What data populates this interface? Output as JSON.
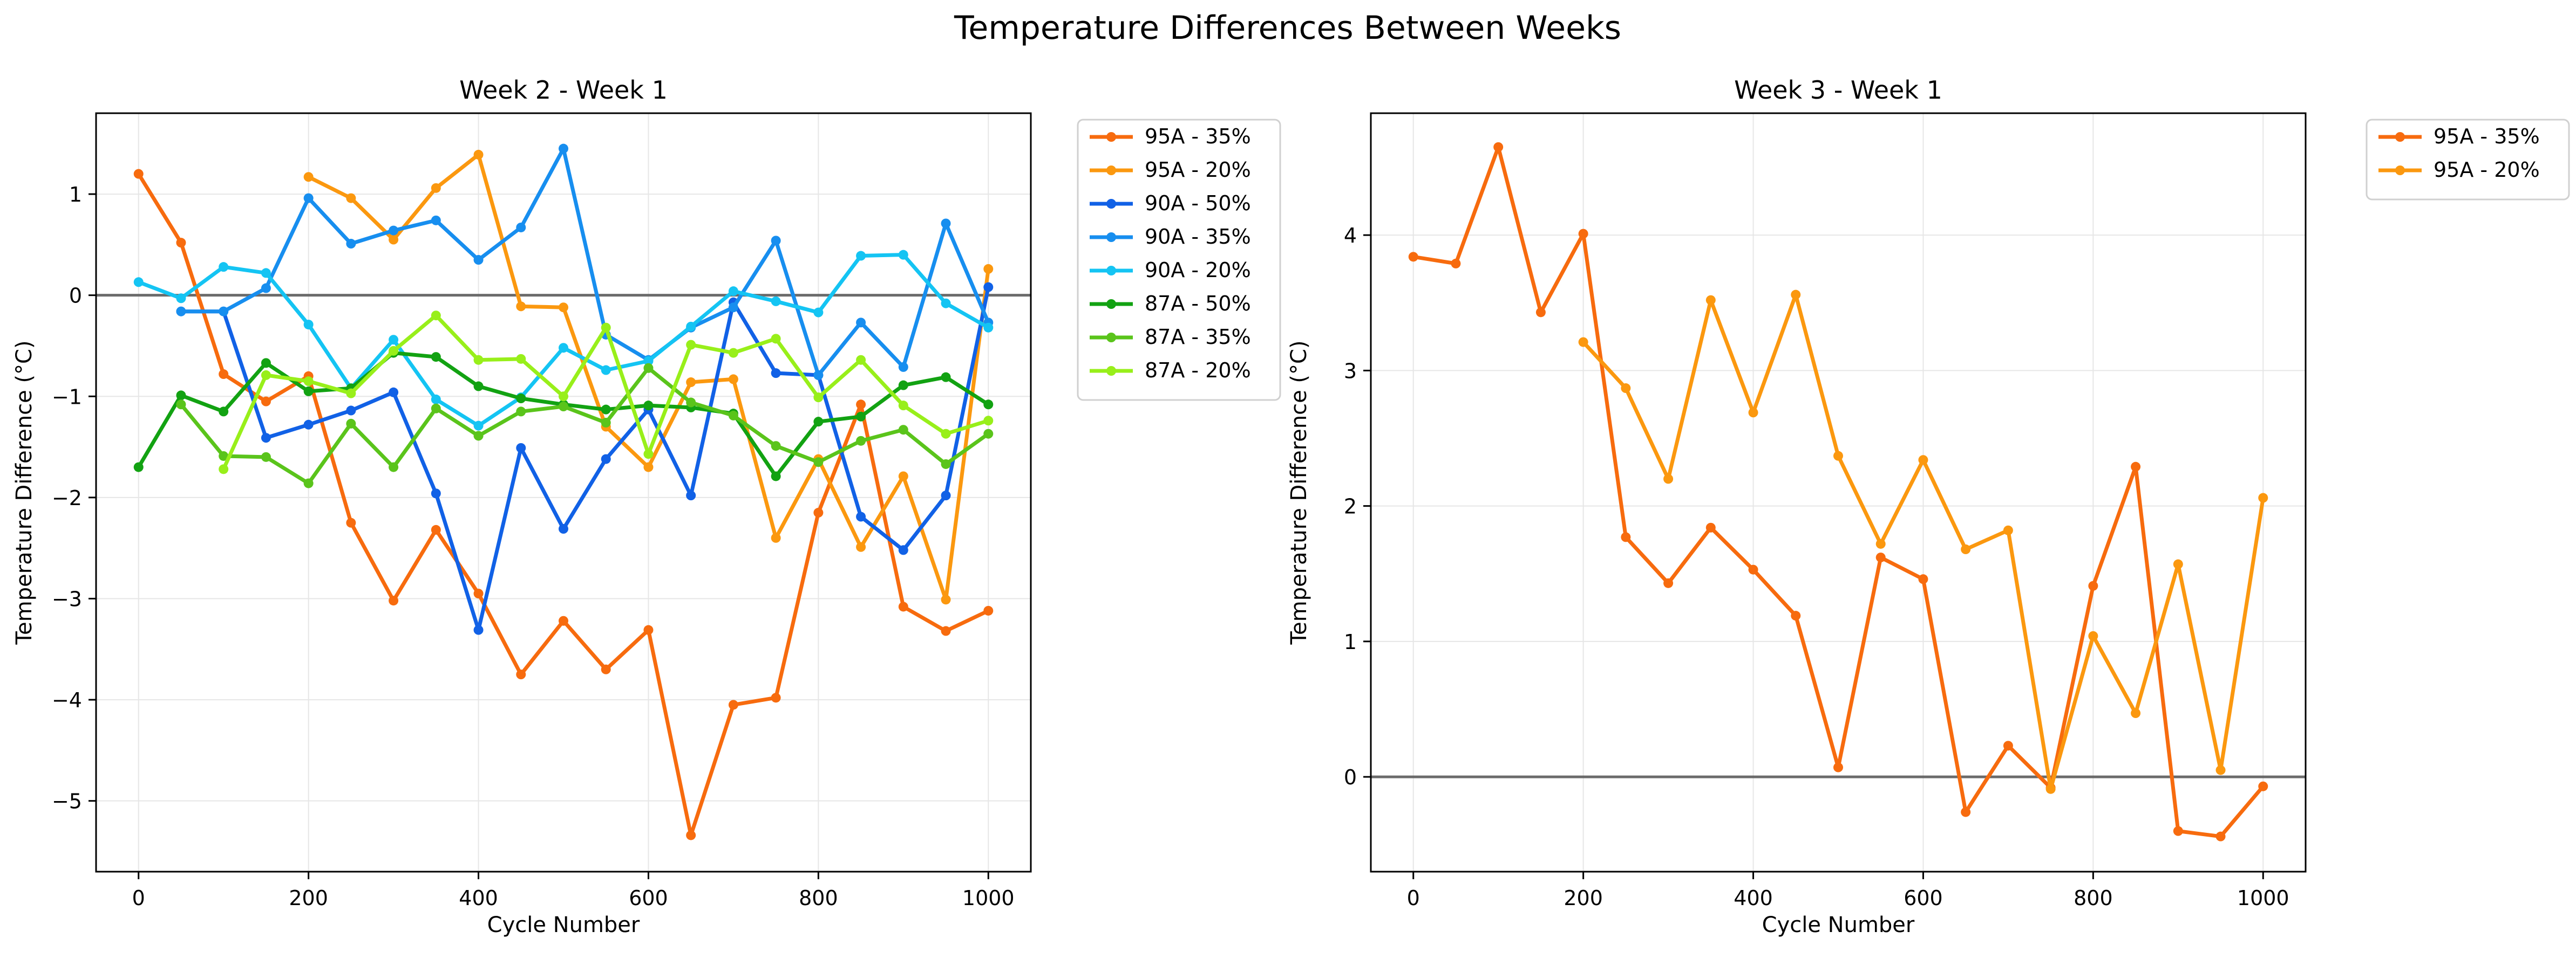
{
  "figure": {
    "suptitle": "Temperature Differences Between Weeks"
  },
  "colors": {
    "95A - 35%": "#f76b0e",
    "95A - 20%": "#fb980f",
    "90A - 50%": "#1161e6",
    "90A - 35%": "#178eef",
    "90A - 20%": "#14c4f3",
    "87A - 50%": "#12a212",
    "87A - 35%": "#5ac41b",
    "87A - 20%": "#98ef1a",
    "zero_line": "#6b6b6b",
    "grid": "#e6e6e6"
  },
  "chart_data": [
    {
      "type": "line",
      "title": "Week 2 - Week 1",
      "xlabel": "Cycle Number",
      "ylabel": "Temperature Difference (°C)",
      "xlim": [
        -50,
        1050
      ],
      "ylim": [
        -5.7,
        1.8
      ],
      "xticks": [
        0,
        200,
        400,
        600,
        800,
        1000
      ],
      "yticks": [
        -5,
        -4,
        -3,
        -2,
        -1,
        0,
        1
      ],
      "ytick_labels": [
        "−5",
        "−4",
        "−3",
        "−2",
        "−1",
        "0",
        "1"
      ],
      "grid": true,
      "zero_line": true,
      "legend_position": "outside-right",
      "series": [
        {
          "name": "95A - 35%",
          "x": [
            0,
            50,
            100,
            150,
            200,
            250,
            300,
            350,
            400,
            450,
            500,
            550,
            600,
            650,
            700,
            750,
            800,
            850,
            900,
            950,
            1000
          ],
          "y": [
            1.2,
            0.52,
            -0.78,
            -1.05,
            -0.8,
            -2.25,
            -3.02,
            -2.32,
            -2.95,
            -3.75,
            -3.22,
            -3.7,
            -3.31,
            -5.34,
            -4.05,
            -3.98,
            -2.15,
            -1.08,
            -3.08,
            -3.32,
            -3.12
          ]
        },
        {
          "name": "95A - 20%",
          "x": [
            200,
            250,
            300,
            350,
            400,
            450,
            500,
            550,
            600,
            650,
            700,
            750,
            800,
            850,
            900,
            950,
            1000
          ],
          "y": [
            1.17,
            0.96,
            0.55,
            1.06,
            1.39,
            -0.11,
            -0.12,
            -1.3,
            -1.7,
            -0.86,
            -0.83,
            -2.4,
            -1.62,
            -2.49,
            -1.79,
            -3.01,
            0.26
          ]
        },
        {
          "name": "90A - 50%",
          "x": [
            50,
            100,
            150,
            200,
            250,
            300,
            350,
            400,
            450,
            500,
            550,
            600,
            650,
            700,
            750,
            800,
            850,
            900,
            950,
            1000
          ],
          "y": [
            -0.16,
            -0.16,
            -1.41,
            -1.28,
            -1.14,
            -0.96,
            -1.96,
            -3.31,
            -1.51,
            -2.31,
            -1.62,
            -1.13,
            -1.98,
            -0.07,
            -0.77,
            -0.79,
            -2.19,
            -2.52,
            -1.98,
            0.08
          ]
        },
        {
          "name": "90A - 35%",
          "x": [
            50,
            100,
            150,
            200,
            250,
            300,
            350,
            400,
            450,
            500,
            550,
            600,
            650,
            700,
            750,
            800,
            850,
            900,
            950,
            1000
          ],
          "y": [
            -0.16,
            -0.16,
            0.07,
            0.96,
            0.51,
            0.64,
            0.74,
            0.35,
            0.67,
            1.45,
            -0.39,
            -0.64,
            -0.32,
            -0.12,
            0.54,
            -0.79,
            -0.27,
            -0.71,
            0.71,
            -0.27
          ]
        },
        {
          "name": "90A - 20%",
          "x": [
            0,
            50,
            100,
            150,
            200,
            250,
            300,
            350,
            400,
            450,
            500,
            550,
            600,
            650,
            700,
            750,
            800,
            850,
            900,
            950,
            1000
          ],
          "y": [
            0.13,
            -0.03,
            0.28,
            0.22,
            -0.29,
            -0.92,
            -0.44,
            -1.03,
            -1.29,
            -1.01,
            -0.52,
            -0.74,
            -0.65,
            -0.31,
            0.04,
            -0.06,
            -0.17,
            0.39,
            0.4,
            -0.08,
            -0.32
          ]
        },
        {
          "name": "87A - 50%",
          "x": [
            0,
            50,
            100,
            150,
            200,
            250,
            300,
            350,
            400,
            450,
            500,
            550,
            600,
            650,
            700,
            750,
            800,
            850,
            900,
            950,
            1000
          ],
          "y": [
            -1.7,
            -0.99,
            -1.15,
            -0.67,
            -0.95,
            -0.92,
            -0.57,
            -0.61,
            -0.9,
            -1.02,
            -1.08,
            -1.13,
            -1.09,
            -1.11,
            -1.17,
            -1.79,
            -1.25,
            -1.2,
            -0.89,
            -0.81,
            -1.08
          ]
        },
        {
          "name": "87A - 35%",
          "x": [
            50,
            100,
            150,
            200,
            250,
            300,
            350,
            400,
            450,
            500,
            550,
            600,
            650,
            700,
            750,
            800,
            850,
            900,
            950,
            1000
          ],
          "y": [
            -1.08,
            -1.59,
            -1.6,
            -1.86,
            -1.27,
            -1.7,
            -1.12,
            -1.39,
            -1.15,
            -1.1,
            -1.26,
            -0.72,
            -1.06,
            -1.19,
            -1.49,
            -1.65,
            -1.44,
            -1.33,
            -1.67,
            -1.37
          ]
        },
        {
          "name": "87A - 20%",
          "x": [
            100,
            150,
            200,
            250,
            300,
            350,
            400,
            450,
            500,
            550,
            600,
            650,
            700,
            750,
            800,
            850,
            900,
            950,
            1000
          ],
          "y": [
            -1.72,
            -0.79,
            -0.85,
            -0.97,
            -0.55,
            -0.2,
            -0.64,
            -0.63,
            -1.0,
            -0.32,
            -1.57,
            -0.49,
            -0.57,
            -0.43,
            -1.01,
            -0.64,
            -1.09,
            -1.37,
            -1.24
          ]
        }
      ]
    },
    {
      "type": "line",
      "title": "Week 3 - Week 1",
      "xlabel": "Cycle Number",
      "ylabel": "Temperature Difference (°C)",
      "xlim": [
        -50,
        1050
      ],
      "ylim": [
        -0.7,
        4.9
      ],
      "xticks": [
        0,
        200,
        400,
        600,
        800,
        1000
      ],
      "yticks": [
        0,
        1,
        2,
        3,
        4
      ],
      "ytick_labels": [
        "0",
        "1",
        "2",
        "3",
        "4"
      ],
      "grid": true,
      "zero_line": true,
      "legend_position": "outside-right",
      "series": [
        {
          "name": "95A - 35%",
          "x": [
            0,
            50,
            100,
            150,
            200,
            250,
            300,
            350,
            400,
            450,
            500,
            550,
            600,
            650,
            700,
            750,
            800,
            850,
            900,
            950,
            1000
          ],
          "y": [
            3.84,
            3.79,
            4.65,
            3.43,
            4.01,
            1.77,
            1.43,
            1.84,
            1.53,
            1.19,
            0.07,
            1.62,
            1.46,
            -0.26,
            0.23,
            -0.08,
            1.41,
            2.29,
            -0.4,
            -0.44,
            -0.07
          ]
        },
        {
          "name": "95A - 20%",
          "x": [
            200,
            250,
            300,
            350,
            400,
            450,
            500,
            550,
            600,
            650,
            700,
            750,
            800,
            850,
            900,
            950,
            1000
          ],
          "y": [
            3.21,
            2.87,
            2.2,
            3.52,
            2.69,
            3.56,
            2.37,
            1.72,
            2.34,
            1.68,
            1.82,
            -0.09,
            1.04,
            0.47,
            1.57,
            0.05,
            2.06
          ]
        }
      ]
    }
  ]
}
